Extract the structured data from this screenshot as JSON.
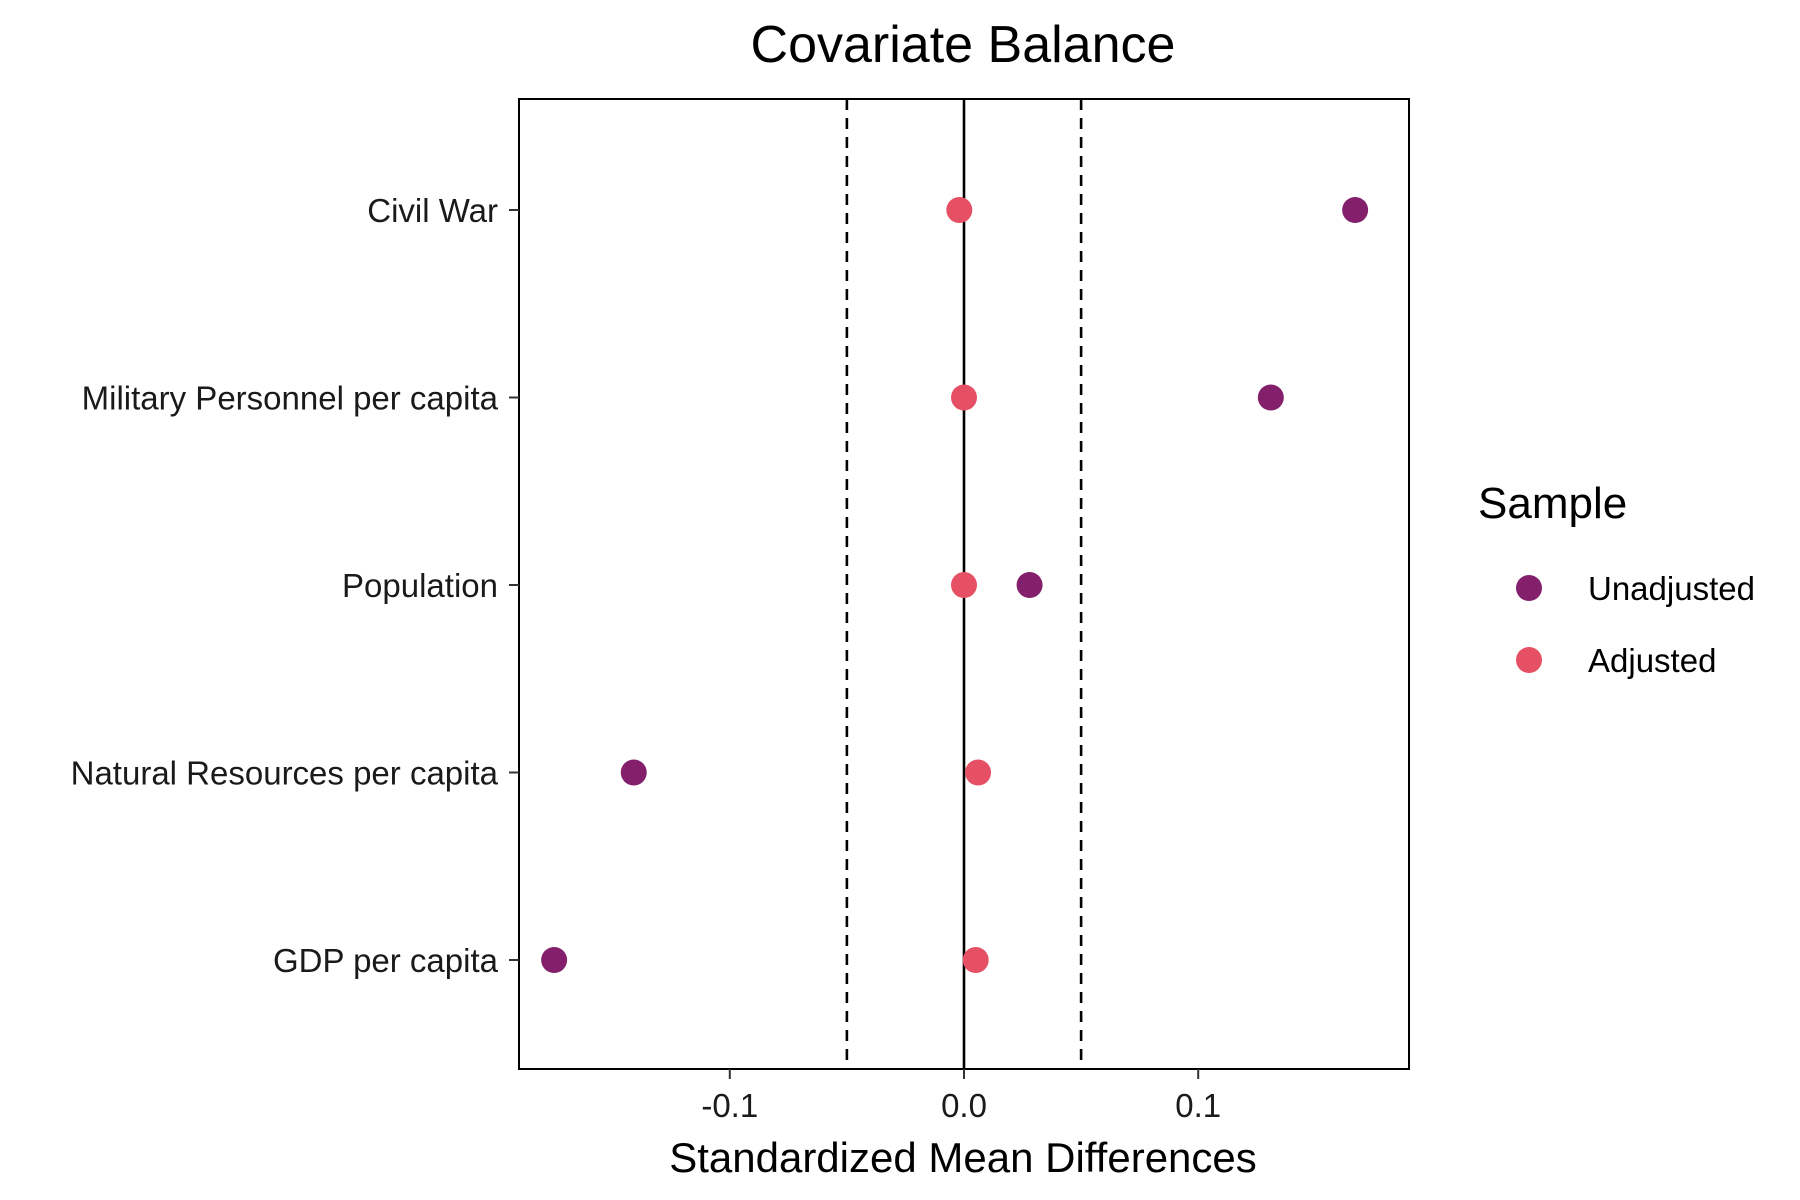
{
  "chart_data": {
    "type": "scatter",
    "title": "Covariate Balance",
    "xlabel": "Standardized Mean Differences",
    "ylabel": "",
    "xlim": [
      -0.19,
      0.19
    ],
    "x_ticks": [
      -0.1,
      0.0,
      0.1
    ],
    "x_tick_labels": [
      "-0.1",
      "0.0",
      "0.1"
    ],
    "categories": [
      "Civil War",
      "Military Personnel per capita",
      "Population",
      "Natural Resources per capita",
      "GDP per capita"
    ],
    "thresholds": [
      -0.05,
      0.05
    ],
    "reference_line": 0,
    "grid": false,
    "legend_position": "right",
    "legend_title": "Sample",
    "series": [
      {
        "name": "Unadjusted",
        "color": "#84206B",
        "values": [
          0.167,
          0.131,
          0.028,
          -0.141,
          -0.175
        ]
      },
      {
        "name": "Adjusted",
        "color": "#E55064",
        "values": [
          -0.002,
          0.0,
          0.0,
          0.006,
          0.005
        ]
      }
    ]
  }
}
